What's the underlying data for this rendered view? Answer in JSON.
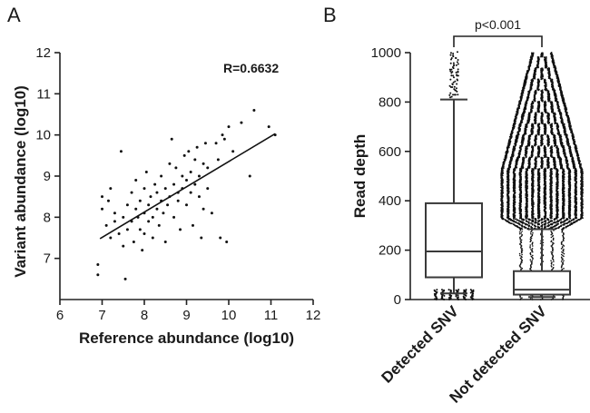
{
  "chart_data": [
    {
      "panel": "A",
      "type": "scatter",
      "xlabel": "Reference abundance (log10)",
      "ylabel": "Variant abundance (log10)",
      "xlim": [
        6,
        12
      ],
      "ylim": [
        6,
        12
      ],
      "xticks": [
        "6",
        "7",
        "8",
        "9",
        "10",
        "11",
        "12"
      ],
      "yticks": [
        "7",
        "8",
        "9",
        "10",
        "11",
        "12"
      ],
      "annotation": "R=0.6632",
      "fit_line": {
        "x": [
          6.95,
          11.1
        ],
        "y": [
          7.48,
          10.03
        ]
      },
      "points": [
        [
          6.9,
          6.85
        ],
        [
          6.9,
          6.6
        ],
        [
          7.0,
          8.5
        ],
        [
          7.0,
          8.2
        ],
        [
          7.1,
          7.8
        ],
        [
          7.15,
          8.4
        ],
        [
          7.2,
          7.5
        ],
        [
          7.2,
          8.7
        ],
        [
          7.3,
          7.9
        ],
        [
          7.3,
          8.1
        ],
        [
          7.4,
          7.6
        ],
        [
          7.45,
          9.6
        ],
        [
          7.5,
          8.0
        ],
        [
          7.5,
          7.3
        ],
        [
          7.55,
          6.5
        ],
        [
          7.6,
          8.3
        ],
        [
          7.6,
          7.7
        ],
        [
          7.7,
          8.6
        ],
        [
          7.7,
          7.9
        ],
        [
          7.75,
          7.4
        ],
        [
          7.8,
          8.2
        ],
        [
          7.8,
          8.9
        ],
        [
          7.85,
          8.0
        ],
        [
          7.9,
          7.7
        ],
        [
          7.9,
          8.4
        ],
        [
          7.95,
          7.2
        ],
        [
          8.0,
          8.1
        ],
        [
          8.0,
          8.7
        ],
        [
          8.0,
          7.6
        ],
        [
          8.05,
          9.1
        ],
        [
          8.1,
          8.3
        ],
        [
          8.1,
          7.9
        ],
        [
          8.15,
          8.5
        ],
        [
          8.2,
          8.0
        ],
        [
          8.2,
          7.5
        ],
        [
          8.25,
          8.8
        ],
        [
          8.3,
          8.2
        ],
        [
          8.3,
          8.6
        ],
        [
          8.35,
          7.8
        ],
        [
          8.4,
          9.0
        ],
        [
          8.4,
          8.4
        ],
        [
          8.45,
          8.1
        ],
        [
          8.5,
          8.7
        ],
        [
          8.5,
          7.4
        ],
        [
          8.55,
          8.3
        ],
        [
          8.6,
          9.3
        ],
        [
          8.6,
          8.5
        ],
        [
          8.65,
          9.9
        ],
        [
          8.7,
          8.8
        ],
        [
          8.7,
          8.0
        ],
        [
          8.75,
          9.2
        ],
        [
          8.8,
          8.6
        ],
        [
          8.8,
          8.4
        ],
        [
          8.85,
          7.7
        ],
        [
          8.9,
          9.0
        ],
        [
          8.9,
          8.7
        ],
        [
          8.95,
          9.5
        ],
        [
          9.0,
          8.9
        ],
        [
          9.0,
          8.3
        ],
        [
          9.05,
          9.6
        ],
        [
          9.1,
          9.1
        ],
        [
          9.1,
          8.6
        ],
        [
          9.15,
          7.8
        ],
        [
          9.2,
          9.4
        ],
        [
          9.2,
          8.8
        ],
        [
          9.25,
          9.7
        ],
        [
          9.3,
          9.0
        ],
        [
          9.3,
          8.5
        ],
        [
          9.35,
          7.5
        ],
        [
          9.4,
          9.3
        ],
        [
          9.4,
          8.2
        ],
        [
          9.45,
          9.8
        ],
        [
          9.5,
          9.2
        ],
        [
          9.5,
          8.7
        ],
        [
          9.6,
          8.1
        ],
        [
          9.7,
          9.8
        ],
        [
          9.75,
          9.4
        ],
        [
          9.8,
          7.5
        ],
        [
          9.85,
          10.0
        ],
        [
          9.9,
          9.9
        ],
        [
          10.0,
          10.2
        ],
        [
          10.1,
          9.6
        ],
        [
          10.3,
          10.3
        ],
        [
          10.5,
          9.0
        ],
        [
          10.6,
          10.6
        ],
        [
          10.95,
          10.2
        ],
        [
          11.1,
          10.0
        ],
        [
          9.95,
          7.4
        ]
      ]
    },
    {
      "panel": "B",
      "type": "box",
      "ylabel": "Read depth",
      "ylim": [
        0,
        1000
      ],
      "yticks": [
        "0",
        "200",
        "400",
        "600",
        "800",
        "1000"
      ],
      "categories": [
        "Detected SNV",
        "Not detected SNV"
      ],
      "boxes": [
        {
          "name": "Detected SNV",
          "whisker_low": 25,
          "q1": 90,
          "median": 195,
          "q3": 390,
          "whisker_high": 810
        },
        {
          "name": "Not detected SNV",
          "whisker_low": 10,
          "q1": 20,
          "median": 40,
          "q3": 115,
          "whisker_high": 285
        }
      ],
      "significance": "p<0.001"
    }
  ],
  "panel_labels": {
    "a": "A",
    "b": "B"
  }
}
